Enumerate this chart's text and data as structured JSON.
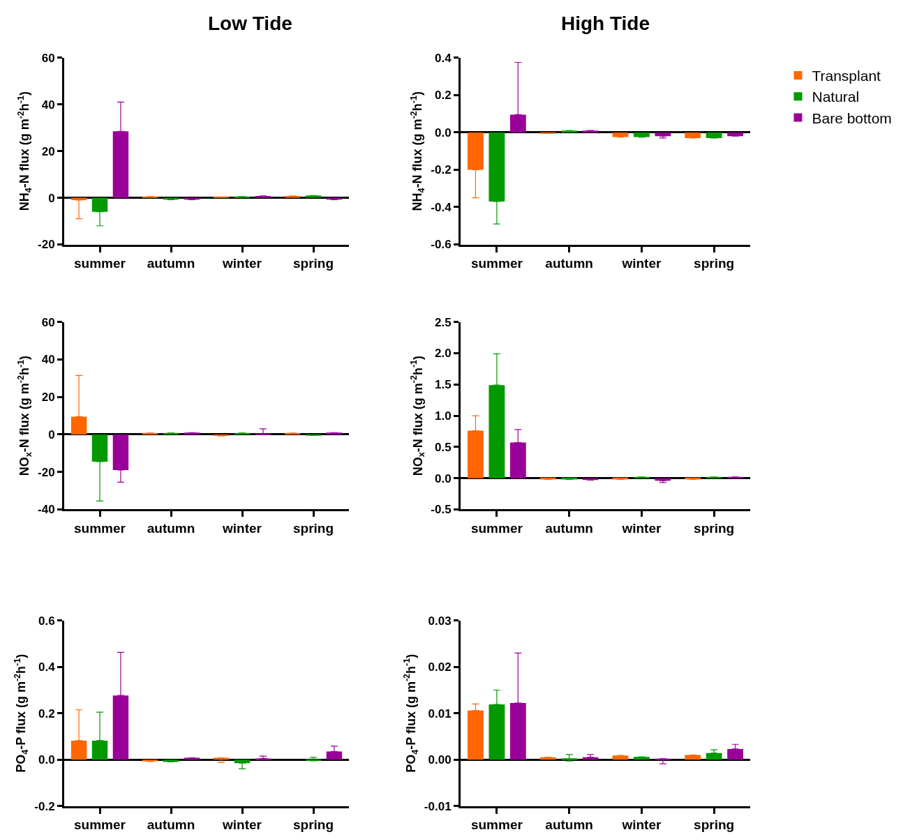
{
  "chart_data": [
    {
      "type": "bar",
      "title": "Low Tide",
      "ylabel": "NH$_{4}$-N flux (g m$^{-2}$h$^{-1}$)",
      "categories": [
        "summer",
        "autumn",
        "winter",
        "spring"
      ],
      "ylim": [
        -20,
        60
      ],
      "yticks": [
        -20,
        0,
        20,
        40,
        60
      ],
      "legend": false,
      "series": [
        {
          "color": "#ff6600",
          "values": [
            -1,
            0.5,
            0.3,
            0.8
          ],
          "errors": [
            [
              -9,
              -1
            ],
            null,
            null,
            null
          ]
        },
        {
          "color": "#009900",
          "values": [
            -6,
            -0.8,
            0.5,
            1
          ],
          "errors": [
            [
              -12,
              -6
            ],
            null,
            null,
            null
          ]
        },
        {
          "color": "#990099",
          "values": [
            28.5,
            -0.8,
            0.8,
            -0.8
          ],
          "errors": [
            [
              28.5,
              41
            ],
            null,
            null,
            null
          ]
        }
      ]
    },
    {
      "type": "bar",
      "title": "High Tide",
      "ylabel": "NH$_{4}$-N flux (g m$^{-2}$h$^{-1}$)",
      "categories": [
        "summer",
        "autumn",
        "winter",
        "spring"
      ],
      "ylim": [
        -0.6,
        0.4
      ],
      "yticks": [
        {
          "value": -0.6,
          "label": "-0.6"
        },
        {
          "value": -0.4,
          "label": "-0.4"
        },
        {
          "value": -0.2,
          "label": "-0.2"
        },
        {
          "value": 0,
          "label": "0.0"
        },
        {
          "value": 0.2,
          "label": "0.2"
        },
        {
          "value": 0.4,
          "label": "0.4"
        }
      ],
      "legend": "top right",
      "series": [
        {
          "name": "Transplant",
          "color": "#ff6600",
          "values": [
            -0.2,
            -0.005,
            -0.025,
            -0.03
          ],
          "errors": [
            [
              -0.35,
              -0.2
            ],
            null,
            null,
            null
          ]
        },
        {
          "name": "Natural",
          "color": "#009900",
          "values": [
            -0.37,
            0.01,
            -0.025,
            -0.03
          ],
          "errors": [
            [
              -0.49,
              -0.37
            ],
            null,
            null,
            null
          ]
        },
        {
          "name": "Bare bottom",
          "color": "#990099",
          "values": [
            0.095,
            0.01,
            -0.02,
            -0.02
          ],
          "errors": [
            [
              0.095,
              0.375
            ],
            null,
            [
              -0.03,
              -0.02
            ],
            null
          ]
        }
      ]
    },
    {
      "type": "bar",
      "ylabel": "NO$_{x}$-N flux (g m$^{-2}$h$^{-1}$)",
      "categories": [
        "summer",
        "autumn",
        "winter",
        "spring"
      ],
      "ylim": [
        -40,
        60
      ],
      "yticks": [
        -40,
        -20,
        0,
        20,
        40,
        60
      ],
      "legend": false,
      "series": [
        {
          "color": "#ff6600",
          "values": [
            9.5,
            0.8,
            -0.8,
            0.8
          ],
          "errors": [
            [
              9.5,
              31.5
            ],
            null,
            null,
            null
          ]
        },
        {
          "color": "#009900",
          "values": [
            -14.5,
            0.8,
            0.8,
            -0.5
          ],
          "errors": [
            [
              -35.5,
              -14.5
            ],
            null,
            null,
            null
          ]
        },
        {
          "color": "#990099",
          "values": [
            -19,
            1,
            0.3,
            1
          ],
          "errors": [
            [
              -25.5,
              -19
            ],
            null,
            [
              0.3,
              3
            ],
            null
          ]
        }
      ]
    },
    {
      "type": "bar",
      "ylabel": "NO$_{x}$-N flux (g m$^{-2}$h$^{-1}$)",
      "categories": [
        "summer",
        "autumn",
        "winter",
        "spring"
      ],
      "ylim": [
        -0.5,
        2.5
      ],
      "yticks": [
        {
          "value": -0.5,
          "label": "-0.5"
        },
        {
          "value": 0,
          "label": "0.0"
        },
        {
          "value": 0.5,
          "label": "0.5"
        },
        {
          "value": 1,
          "label": "1.0"
        },
        {
          "value": 1.5,
          "label": "1.5"
        },
        {
          "value": 2,
          "label": "2.0"
        },
        {
          "value": 2.5,
          "label": "2.5"
        }
      ],
      "legend": false,
      "series": [
        {
          "color": "#ff6600",
          "values": [
            0.76,
            -0.02,
            -0.02,
            -0.02
          ],
          "errors": [
            [
              0.76,
              1.0
            ],
            null,
            null,
            null
          ]
        },
        {
          "color": "#009900",
          "values": [
            1.49,
            -0.02,
            0.02,
            0.02
          ],
          "errors": [
            [
              1.49,
              1.99
            ],
            null,
            null,
            null
          ]
        },
        {
          "color": "#990099",
          "values": [
            0.57,
            -0.03,
            -0.04,
            0.02
          ],
          "errors": [
            [
              0.57,
              0.78
            ],
            null,
            [
              -0.07,
              -0.04
            ],
            null
          ]
        }
      ]
    },
    {
      "type": "bar",
      "ylabel": "PO$_{4}$-P flux (g m$^{-2}$h$^{-1}$)",
      "categories": [
        "summer",
        "autumn",
        "winter",
        "spring"
      ],
      "ylim": [
        -0.2,
        0.6
      ],
      "yticks": [
        {
          "value": -0.2,
          "label": "-0.2"
        },
        {
          "value": 0,
          "label": "0.0"
        },
        {
          "value": 0.2,
          "label": "0.2"
        },
        {
          "value": 0.4,
          "label": "0.4"
        },
        {
          "value": 0.6,
          "label": "0.6"
        }
      ],
      "legend": false,
      "series": [
        {
          "color": "#ff6600",
          "values": [
            0.082,
            -0.008,
            0.008,
            null
          ],
          "errors": [
            [
              0.082,
              0.215
            ],
            null,
            [
              -0.012,
              0.008
            ],
            null
          ]
        },
        {
          "color": "#009900",
          "values": [
            0.082,
            -0.01,
            -0.015,
            -0.005
          ],
          "errors": [
            [
              0.082,
              0.205
            ],
            null,
            [
              -0.04,
              -0.015
            ],
            [
              -0.005,
              0.01
            ]
          ]
        },
        {
          "color": "#990099",
          "values": [
            0.277,
            0.008,
            0.005,
            0.035
          ],
          "errors": [
            [
              0.277,
              0.463
            ],
            null,
            [
              0.005,
              0.015
            ],
            [
              0.035,
              0.058
            ]
          ]
        }
      ]
    },
    {
      "type": "bar",
      "ylabel": "PO$_{4}$-P flux (g m$^{-2}$h$^{-1}$)",
      "categories": [
        "summer",
        "autumn",
        "winter",
        "spring"
      ],
      "ylim": [
        -0.01,
        0.03
      ],
      "yticks": [
        {
          "value": -0.01,
          "label": "-0.01"
        },
        {
          "value": 0,
          "label": "0.00"
        },
        {
          "value": 0.01,
          "label": "0.01"
        },
        {
          "value": 0.02,
          "label": "0.02"
        },
        {
          "value": 0.03,
          "label": "0.03"
        }
      ],
      "legend": false,
      "series": [
        {
          "color": "#ff6600",
          "values": [
            0.0106,
            0.0005,
            0.0009,
            0.001
          ],
          "errors": [
            [
              0.0106,
              0.012
            ],
            null,
            null,
            null
          ]
        },
        {
          "color": "#009900",
          "values": [
            0.0119,
            0.0003,
            0.0006,
            0.0014
          ],
          "errors": [
            [
              0.0119,
              0.015
            ],
            [
              -0.0003,
              0.0011
            ],
            null,
            [
              0.0014,
              0.0021
            ]
          ]
        },
        {
          "color": "#990099",
          "values": [
            0.0122,
            0.0005,
            0.0002,
            0.0023
          ],
          "errors": [
            [
              0.0122,
              0.023
            ],
            [
              0.0005,
              0.0011
            ],
            [
              -0.0009,
              0.0002
            ],
            [
              0.0023,
              0.0033
            ]
          ]
        }
      ]
    }
  ]
}
